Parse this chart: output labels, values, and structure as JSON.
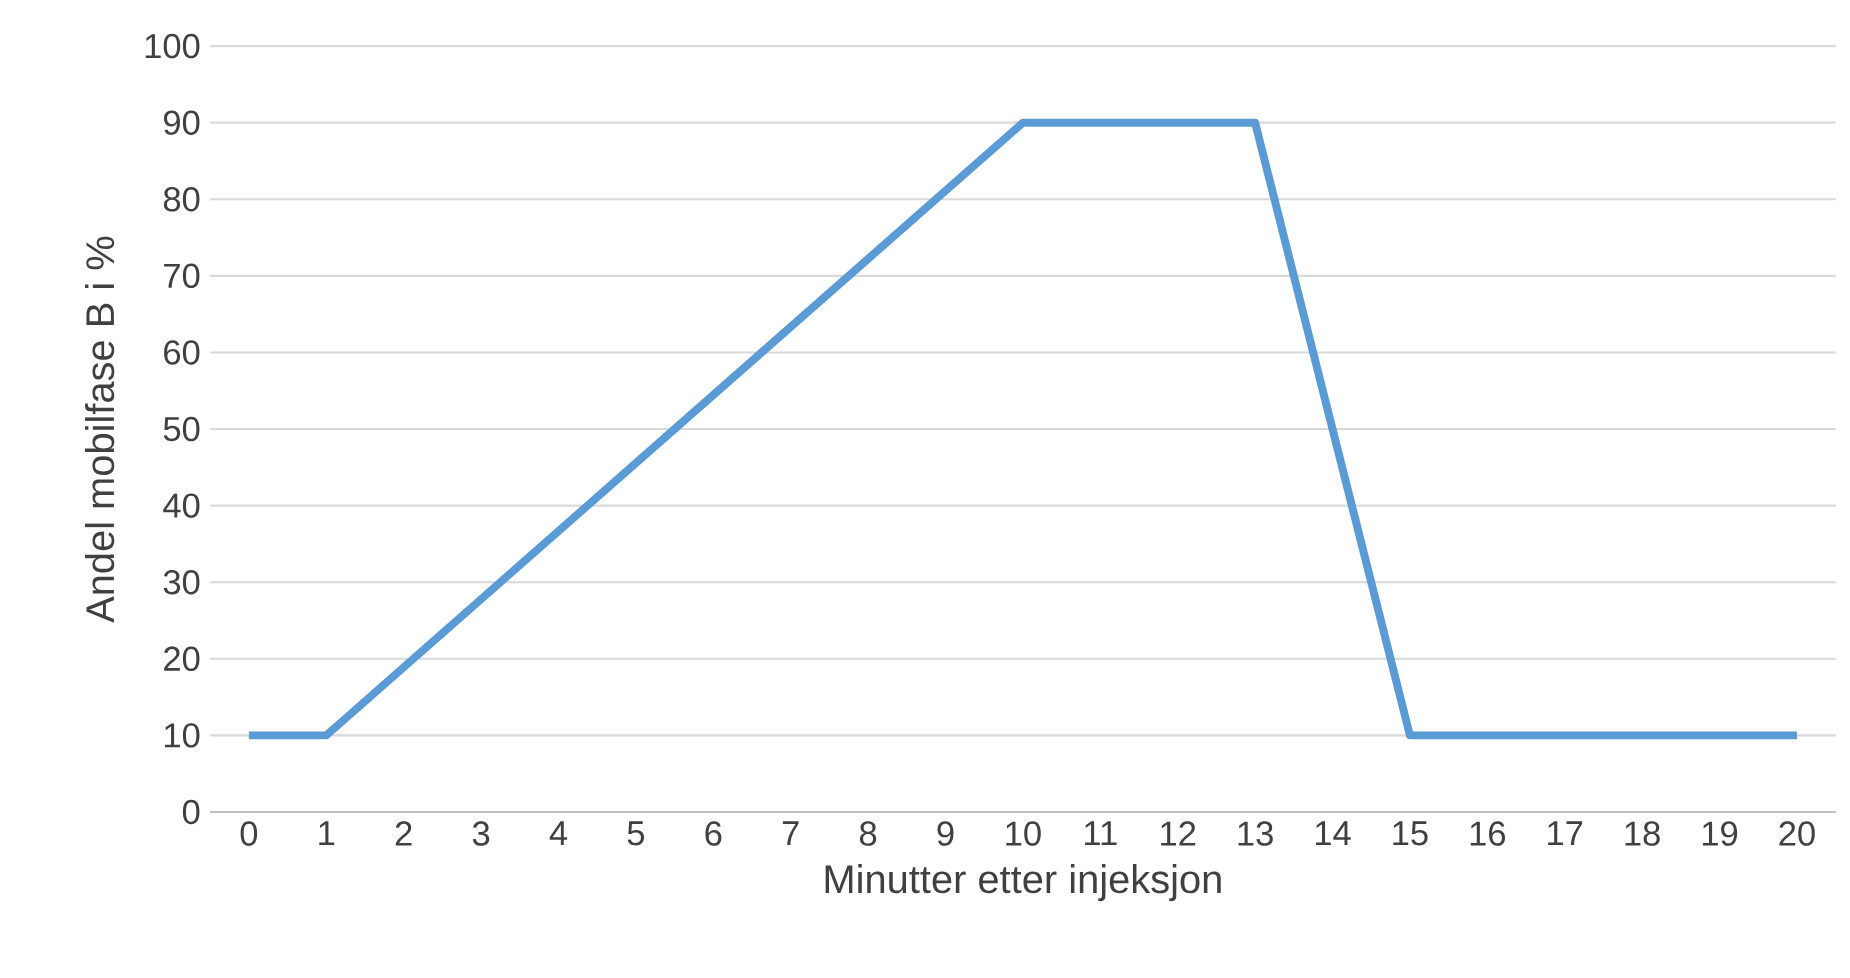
{
  "chart_data": {
    "type": "line",
    "xlabel": "Minutter etter injeksjon",
    "ylabel": "Andel mobilfase B i %",
    "x": [
      0,
      1,
      10,
      13,
      15,
      20
    ],
    "series": [
      {
        "color": "#5b9bd5",
        "values": [
          10,
          10,
          90,
          90,
          10,
          10
        ]
      }
    ],
    "xlim": [
      -0.5,
      20.5
    ],
    "xticks": [
      0,
      1,
      2,
      3,
      4,
      5,
      6,
      7,
      8,
      9,
      10,
      11,
      12,
      13,
      14,
      15,
      16,
      17,
      18,
      19,
      20
    ],
    "ylim": [
      0,
      100
    ],
    "yticks": [
      0,
      10,
      20,
      30,
      40,
      50,
      60,
      70,
      80,
      90,
      100
    ],
    "grid": "y",
    "marker": "none",
    "line_style": "solid"
  }
}
